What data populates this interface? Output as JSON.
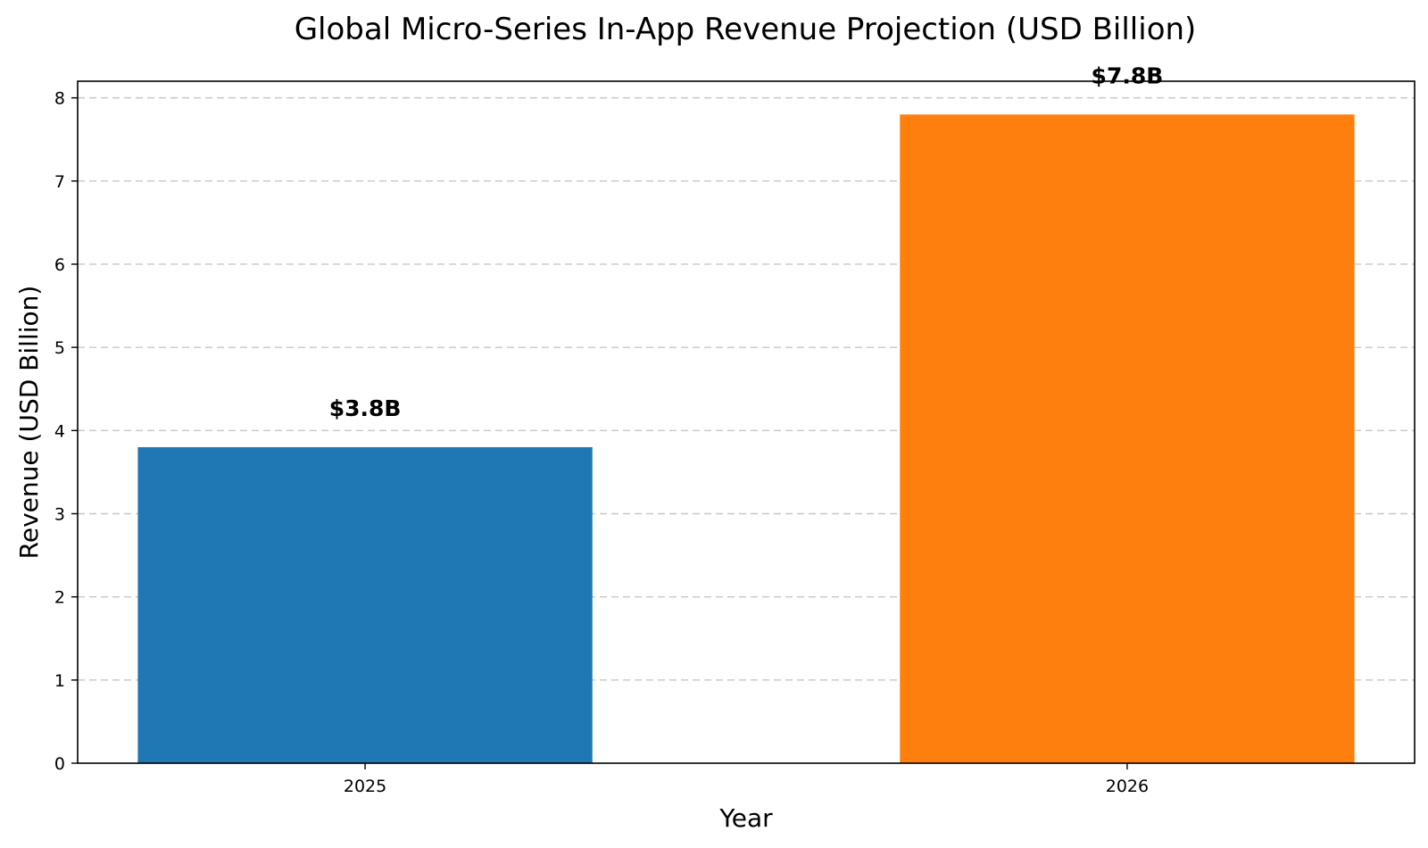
{
  "chart_data": {
    "type": "bar",
    "title": "Global Micro-Series In-App Revenue Projection (USD Billion)",
    "xlabel": "Year",
    "ylabel": "Revenue (USD Billion)",
    "categories": [
      "2025",
      "2026"
    ],
    "values": [
      3.8,
      7.8
    ],
    "data_labels": [
      "$3.8B",
      "$7.8B"
    ],
    "colors": [
      "#1f77b4",
      "#ff7f0e"
    ],
    "ylim": [
      0,
      8.2
    ],
    "yticks": [
      0,
      1,
      2,
      3,
      4,
      5,
      6,
      7,
      8
    ],
    "ytick_labels": [
      "0",
      "1",
      "2",
      "3",
      "4",
      "5",
      "6",
      "7",
      "8"
    ],
    "grid": "y-dashed",
    "legend": "none"
  }
}
